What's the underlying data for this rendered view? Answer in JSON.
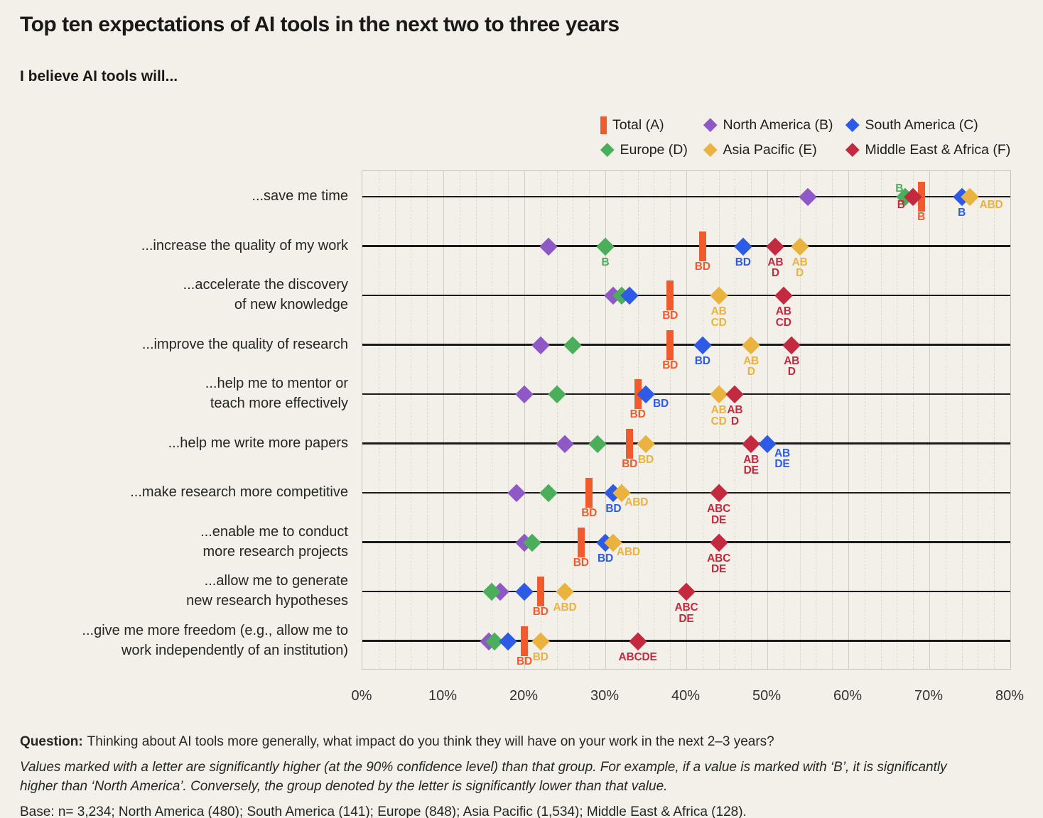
{
  "chart_data": {
    "type": "scatter",
    "subtype": "dot-plot-diamonds",
    "title": "Top ten expectations of AI tools in the next two to three years",
    "subtitle": "I believe AI tools will...",
    "xlim": [
      0,
      80
    ],
    "x_tick_step": 10,
    "minor_grid_step": 2,
    "x_tick_labels": [
      "0%",
      "10%",
      "20%",
      "30%",
      "40%",
      "50%",
      "60%",
      "70%",
      "80%"
    ],
    "legend_position": "top-right-two-rows",
    "groups": [
      {
        "id": "A",
        "label": "Total (A)",
        "color": "#F05A2D",
        "marker": "bar"
      },
      {
        "id": "B",
        "label": "North America (B)",
        "color": "#8E58C7",
        "marker": "diamond"
      },
      {
        "id": "C",
        "label": "South America (C)",
        "color": "#2D5BE5",
        "marker": "diamond"
      },
      {
        "id": "D",
        "label": "Europe (D)",
        "color": "#4BAE5A",
        "marker": "diamond"
      },
      {
        "id": "E",
        "label": "Asia Pacific (E)",
        "color": "#EAB23E",
        "marker": "diamond"
      },
      {
        "id": "F",
        "label": "Middle East & Africa (F)",
        "color": "#C3293F",
        "marker": "diamond"
      }
    ],
    "draw_order": [
      "B",
      "D",
      "A",
      "C",
      "E",
      "F"
    ],
    "rows": [
      {
        "category": "...save me time",
        "points": [
          {
            "g": "B",
            "v": 55
          },
          {
            "g": "D",
            "v": 67,
            "sig": "B",
            "pos": "above-left"
          },
          {
            "g": "F",
            "v": 68,
            "sig": "B",
            "pos": "below-left"
          },
          {
            "g": "A",
            "v": 69,
            "sig": "B"
          },
          {
            "g": "C",
            "v": 74,
            "sig": "B"
          },
          {
            "g": "E",
            "v": 75,
            "sig": "ABD",
            "pos": "right"
          }
        ]
      },
      {
        "category": "...increase the quality of my work",
        "points": [
          {
            "g": "B",
            "v": 23
          },
          {
            "g": "D",
            "v": 30,
            "sig": "B"
          },
          {
            "g": "A",
            "v": 42,
            "sig": "BD"
          },
          {
            "g": "C",
            "v": 47,
            "sig": "BD"
          },
          {
            "g": "F",
            "v": 51,
            "sig": "AB\nD"
          },
          {
            "g": "E",
            "v": 54,
            "sig": "AB\nD"
          }
        ]
      },
      {
        "category": "...accelerate the discovery\nof new knowledge",
        "points": [
          {
            "g": "B",
            "v": 31
          },
          {
            "g": "D",
            "v": 32
          },
          {
            "g": "C",
            "v": 33
          },
          {
            "g": "A",
            "v": 38,
            "sig": "BD"
          },
          {
            "g": "E",
            "v": 44,
            "sig": "AB\nCD"
          },
          {
            "g": "F",
            "v": 52,
            "sig": "AB\nCD"
          }
        ]
      },
      {
        "category": "...improve the quality of research",
        "points": [
          {
            "g": "B",
            "v": 22
          },
          {
            "g": "D",
            "v": 26
          },
          {
            "g": "A",
            "v": 38,
            "sig": "BD"
          },
          {
            "g": "C",
            "v": 42,
            "sig": "BD"
          },
          {
            "g": "E",
            "v": 48,
            "sig": "AB\nD"
          },
          {
            "g": "F",
            "v": 53,
            "sig": "AB\nD"
          }
        ]
      },
      {
        "category": "...help me to mentor or\nteach more effectively",
        "points": [
          {
            "g": "B",
            "v": 20
          },
          {
            "g": "D",
            "v": 24
          },
          {
            "g": "A",
            "v": 34,
            "sig": "BD"
          },
          {
            "g": "C",
            "v": 35,
            "sig": "BD",
            "pos": "below-right"
          },
          {
            "g": "E",
            "v": 44,
            "sig": "AB\nCD"
          },
          {
            "g": "F",
            "v": 46,
            "sig": "AB\nD"
          }
        ]
      },
      {
        "category": "...help me write more papers",
        "points": [
          {
            "g": "B",
            "v": 25
          },
          {
            "g": "D",
            "v": 29
          },
          {
            "g": "A",
            "v": 33,
            "sig": "BD"
          },
          {
            "g": "E",
            "v": 35,
            "sig": "BD"
          },
          {
            "g": "F",
            "v": 48,
            "sig": "AB\nDE"
          },
          {
            "g": "C",
            "v": 50,
            "sig": "AB\nDE",
            "pos": "below-right"
          }
        ]
      },
      {
        "category": "...make research more competitive",
        "points": [
          {
            "g": "B",
            "v": 19
          },
          {
            "g": "D",
            "v": 23
          },
          {
            "g": "A",
            "v": 28,
            "sig": "BD"
          },
          {
            "g": "C",
            "v": 31,
            "sig": "BD"
          },
          {
            "g": "E",
            "v": 32,
            "sig": "ABD",
            "pos": "below-right"
          },
          {
            "g": "F",
            "v": 44,
            "sig": "ABC\nDE"
          }
        ]
      },
      {
        "category": "...enable me to conduct\nmore research projects",
        "points": [
          {
            "g": "B",
            "v": 20
          },
          {
            "g": "D",
            "v": 21
          },
          {
            "g": "A",
            "v": 27,
            "sig": "BD"
          },
          {
            "g": "C",
            "v": 30,
            "sig": "BD"
          },
          {
            "g": "E",
            "v": 31,
            "sig": "ABD",
            "pos": "below-right"
          },
          {
            "g": "F",
            "v": 44,
            "sig": "ABC\nDE"
          }
        ]
      },
      {
        "category": "...allow me to generate\nnew research hypotheses",
        "points": [
          {
            "g": "D",
            "v": 16
          },
          {
            "g": "B",
            "v": 17
          },
          {
            "g": "C",
            "v": 20
          },
          {
            "g": "A",
            "v": 22,
            "sig": "BD"
          },
          {
            "g": "E",
            "v": 25,
            "sig": "ABD"
          },
          {
            "g": "F",
            "v": 40,
            "sig": "ABC\nDE"
          }
        ]
      },
      {
        "category": "...give me more freedom (e.g., allow me to\nwork independently of an institution)",
        "points": [
          {
            "g": "B",
            "v": 16
          },
          {
            "g": "D",
            "v": 16
          },
          {
            "g": "C",
            "v": 18
          },
          {
            "g": "A",
            "v": 20,
            "sig": "BD"
          },
          {
            "g": "E",
            "v": 22,
            "sig": "BD"
          },
          {
            "g": "F",
            "v": 34,
            "sig": "ABCDE"
          }
        ]
      }
    ]
  },
  "footer": {
    "question_label": "Question:",
    "question_text": "Thinking about AI tools more generally, what impact do you think they will have on your work in the next 2–3 years?",
    "note": "Values marked with a letter are significantly higher (at the 90% confidence level) than that group. For example, if a value is marked with ‘B’, it is significantly higher than ‘North America’. Conversely, the group denoted by the letter is significantly lower than that value.",
    "base": "Base: n= 3,234; North America (480); South America (141); Europe (848); Asia Pacific (1,534); Middle East & Africa (128)."
  }
}
